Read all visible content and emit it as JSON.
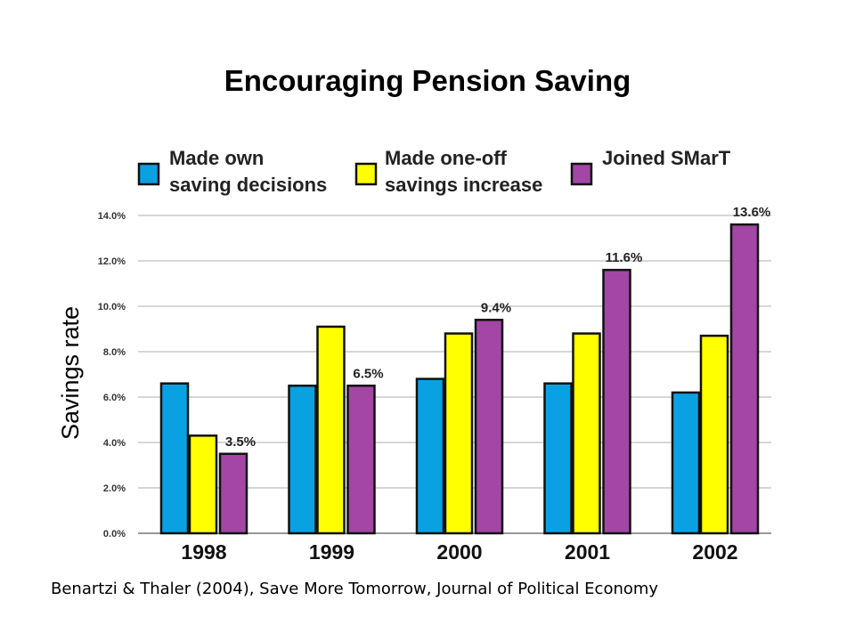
{
  "slide": {
    "title": "Encouraging Pension Saving",
    "caption": "Benartzi & Thaler (2004), Save More Tomorrow, Journal of Political Economy"
  },
  "chart_data": {
    "type": "bar",
    "title": "",
    "xlabel": "",
    "ylabel": "Savings rate",
    "categories": [
      "1998",
      "1999",
      "2000",
      "2001",
      "2002"
    ],
    "ylim": [
      0,
      14
    ],
    "yticks": [
      "0.0%",
      "2.0%",
      "4.0%",
      "6.0%",
      "8.0%",
      "10.0%",
      "12.0%",
      "14.0%"
    ],
    "ytick_values": [
      0,
      2,
      4,
      6,
      8,
      10,
      12,
      14
    ],
    "grid": true,
    "legend_position": "top",
    "series": [
      {
        "name": "Made own saving decisions",
        "legend_lines": [
          "Made own",
          "saving decisions"
        ],
        "color": "#0aa1e2",
        "values": [
          6.6,
          6.5,
          6.8,
          6.6,
          6.2
        ]
      },
      {
        "name": "Made one-off savings increase",
        "legend_lines": [
          "Made one-off",
          "savings increase"
        ],
        "color": "#ffff00",
        "values": [
          4.3,
          9.1,
          8.8,
          8.8,
          8.7
        ]
      },
      {
        "name": "Joined SMarT",
        "legend_lines": [
          "Joined SMarT"
        ],
        "color": "#a346a6",
        "values": [
          3.5,
          6.5,
          9.4,
          11.6,
          13.6
        ]
      }
    ],
    "data_labels": [
      {
        "series": 2,
        "index": 0,
        "text": "3.5%"
      },
      {
        "series": 2,
        "index": 1,
        "text": "6.5%"
      },
      {
        "series": 2,
        "index": 2,
        "text": "9.4%"
      },
      {
        "series": 2,
        "index": 3,
        "text": "11.6%"
      },
      {
        "series": 2,
        "index": 4,
        "text": "13.6%"
      }
    ]
  }
}
